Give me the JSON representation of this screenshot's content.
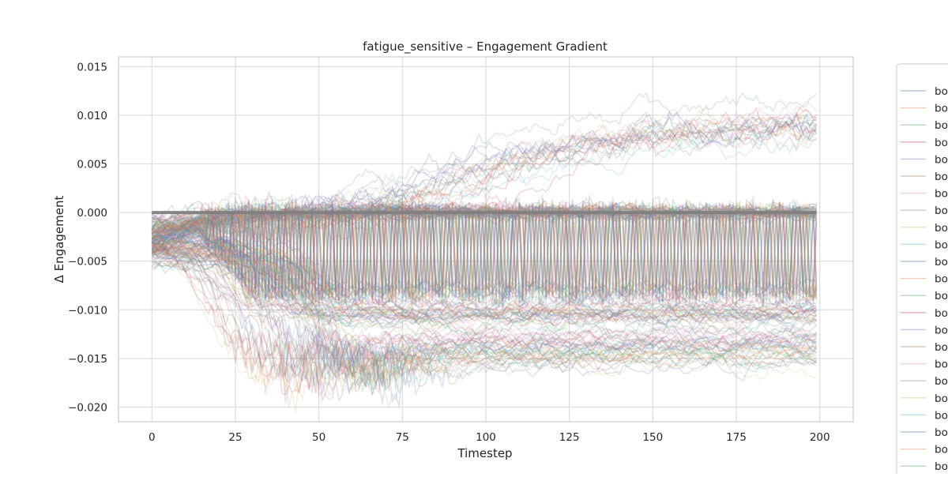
{
  "chart_data": {
    "type": "line",
    "title": "fatigue_sensitive – Engagement Gradient",
    "xlabel": "Timestep",
    "ylabel": "Δ Engagement",
    "xlim": [
      -10,
      210
    ],
    "ylim": [
      -0.0215,
      0.016
    ],
    "x_ticks": [
      0,
      25,
      50,
      75,
      100,
      125,
      150,
      175,
      200
    ],
    "y_ticks": [
      -0.02,
      -0.015,
      -0.01,
      -0.005,
      0.0,
      0.005,
      0.01,
      0.015
    ],
    "x_tick_labels": [
      "0",
      "25",
      "50",
      "75",
      "100",
      "125",
      "150",
      "175",
      "200"
    ],
    "y_tick_labels": [
      "−0.020",
      "−0.015",
      "−0.010",
      "−0.005",
      "0.000",
      "0.005",
      "0.010",
      "0.015"
    ],
    "grid": true,
    "legend_position": "right-outside",
    "legend_entries": [
      "bo",
      "bo",
      "bo",
      "bo",
      "bo",
      "bo",
      "bo",
      "bo",
      "bo",
      "bo",
      "bo",
      "bo",
      "bo",
      "bo",
      "bo",
      "bo",
      "bo",
      "bo",
      "bo",
      "bo",
      "bo",
      "bo",
      "bo"
    ],
    "palette": [
      "#4c72b0",
      "#dd8452",
      "#55a868",
      "#c44e52",
      "#8172b3",
      "#937860",
      "#da8bc3",
      "#8c8c8c",
      "#ccb974",
      "#64b5cd"
    ],
    "mean_line": {
      "x_range": [
        0,
        199
      ],
      "value": 0.0,
      "color": "#808080"
    },
    "series_summary": {
      "count": 200,
      "x_range": [
        0,
        199
      ],
      "groups": [
        {
          "pattern": "rising",
          "start": -0.002,
          "end": 0.009,
          "share": 0.12
        },
        {
          "pattern": "near-zero",
          "start": -0.002,
          "end": 0.0,
          "share": 0.26
        },
        {
          "pattern": "oscillating",
          "low": -0.008,
          "high": 0.0,
          "share": 0.22
        },
        {
          "pattern": "drop to -0.010",
          "start": -0.003,
          "end": -0.01,
          "share": 0.18
        },
        {
          "pattern": "drop to -0.014",
          "start": -0.004,
          "end": -0.014,
          "min": -0.019,
          "share": 0.22
        }
      ]
    },
    "series_alpha": 0.22
  }
}
